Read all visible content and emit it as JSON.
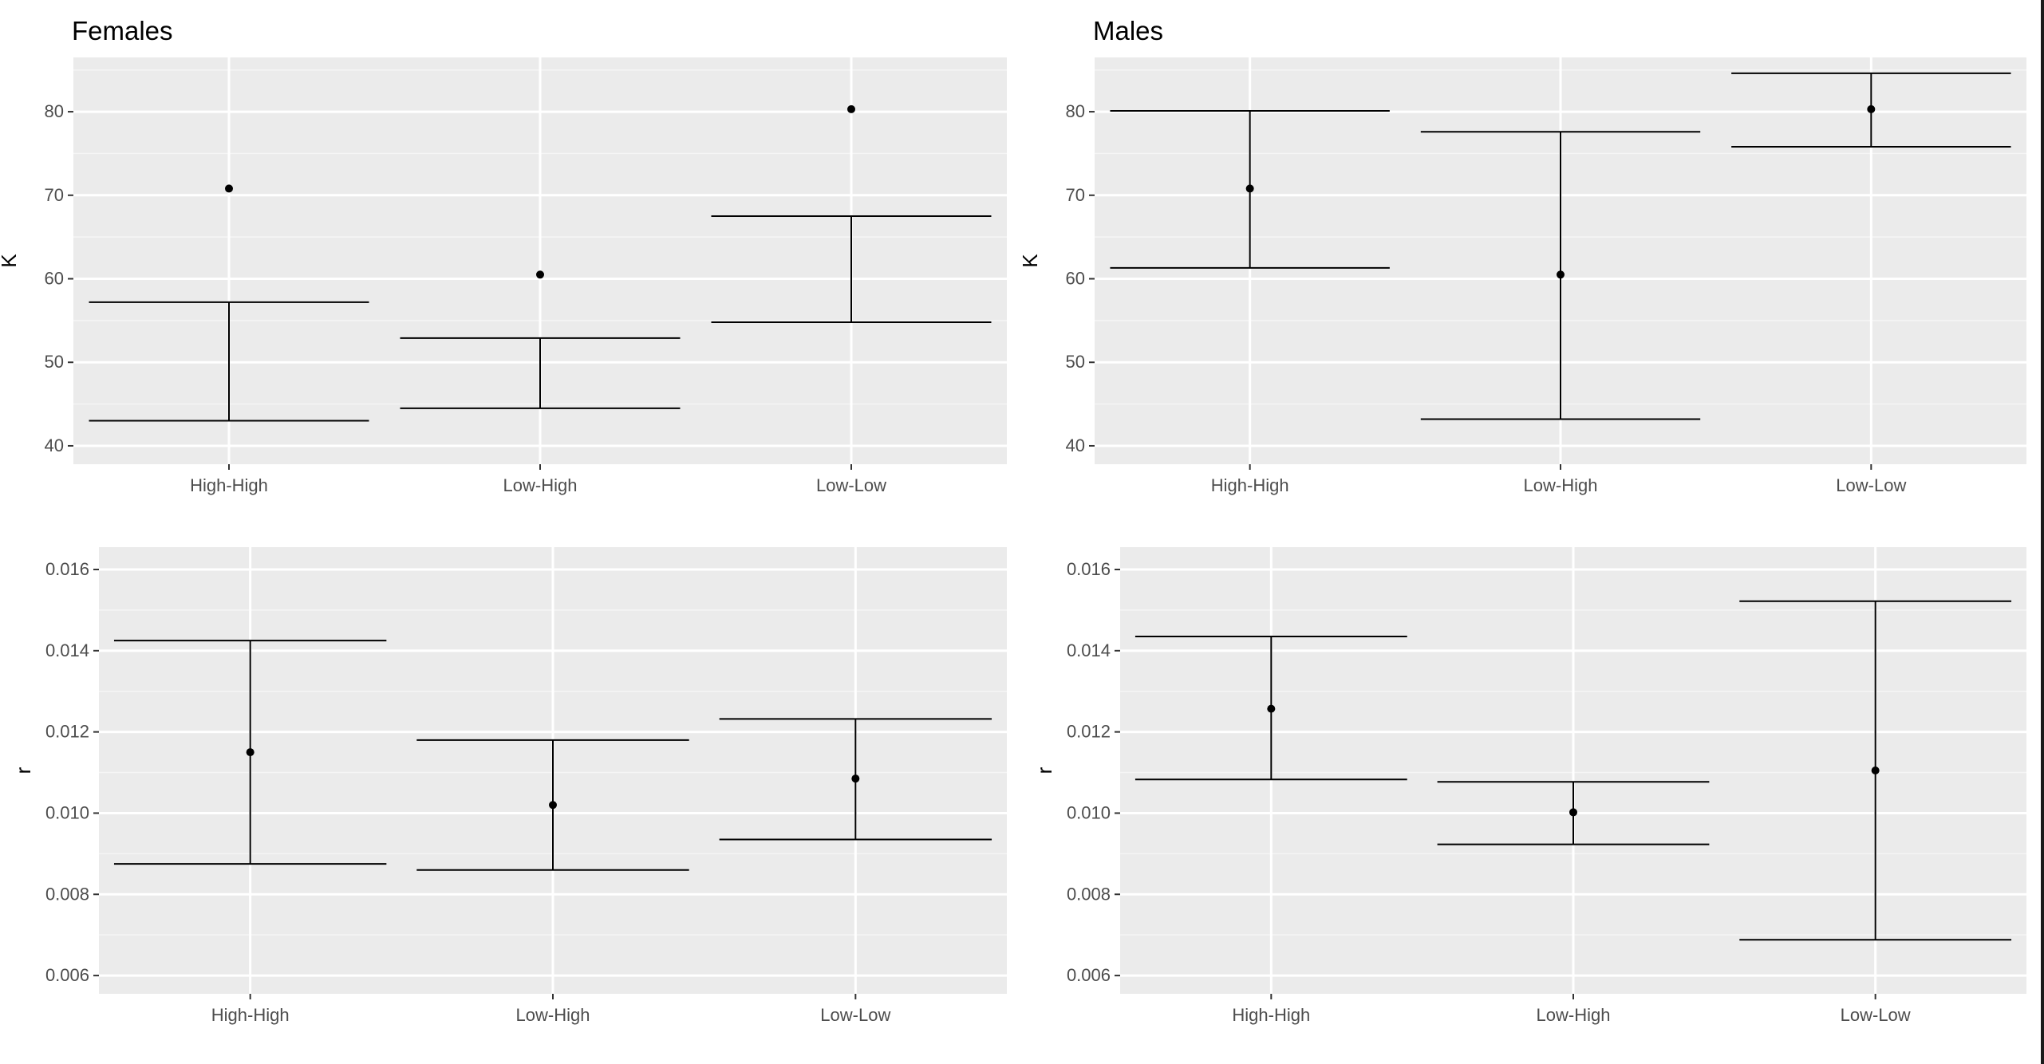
{
  "chart_data": [
    {
      "type": "errorbar",
      "title": "Females",
      "ylabel": "K",
      "xlabel": "",
      "categories": [
        "High-High",
        "Low-High",
        "Low-Low"
      ],
      "points": [
        70.8,
        60.5,
        80.3
      ],
      "ci_low": [
        43.0,
        44.5,
        54.8
      ],
      "ci_high": [
        57.2,
        52.9,
        67.5
      ],
      "ylim": [
        37.8,
        86.5
      ],
      "yticks": [
        40,
        50,
        60,
        70,
        80
      ],
      "ytick_labels": [
        "40",
        "50",
        "60",
        "70",
        "80"
      ],
      "grid": true
    },
    {
      "type": "errorbar",
      "title": "Males",
      "ylabel": "K",
      "xlabel": "",
      "categories": [
        "High-High",
        "Low-High",
        "Low-Low"
      ],
      "points": [
        70.8,
        60.5,
        80.3
      ],
      "ci_low": [
        61.3,
        43.2,
        75.8
      ],
      "ci_high": [
        80.1,
        77.6,
        84.6
      ],
      "ylim": [
        37.8,
        86.5
      ],
      "yticks": [
        40,
        50,
        60,
        70,
        80
      ],
      "ytick_labels": [
        "40",
        "50",
        "60",
        "70",
        "80"
      ],
      "grid": true
    },
    {
      "type": "errorbar",
      "title": "",
      "ylabel": "r",
      "xlabel": "",
      "categories": [
        "High-High",
        "Low-High",
        "Low-Low"
      ],
      "points": [
        0.0115,
        0.0102,
        0.01085
      ],
      "ci_low": [
        0.00875,
        0.0086,
        0.00935
      ],
      "ci_high": [
        0.01425,
        0.0118,
        0.01232
      ],
      "ylim": [
        0.00555,
        0.01655
      ],
      "yticks": [
        0.006,
        0.008,
        0.01,
        0.012,
        0.014,
        0.016
      ],
      "ytick_labels": [
        "0.006",
        "0.008",
        "0.010",
        "0.012",
        "0.014",
        "0.016"
      ],
      "grid": true
    },
    {
      "type": "errorbar",
      "title": "",
      "ylabel": "r",
      "xlabel": "",
      "categories": [
        "High-High",
        "Low-High",
        "Low-Low"
      ],
      "points": [
        0.01257,
        0.01002,
        0.01105
      ],
      "ci_low": [
        0.01083,
        0.00923,
        0.00688
      ],
      "ci_high": [
        0.01435,
        0.01077,
        0.01522
      ],
      "ylim": [
        0.00555,
        0.01655
      ],
      "yticks": [
        0.006,
        0.008,
        0.01,
        0.012,
        0.014,
        0.016
      ],
      "ytick_labels": [
        "0.006",
        "0.008",
        "0.010",
        "0.012",
        "0.014",
        "0.016"
      ],
      "grid": true
    }
  ],
  "colors": {
    "panel_background": "#ebebeb",
    "grid_major": "#ffffff",
    "grid_minor": "#f5f5f5",
    "mark": "#000000",
    "tick_label": "#4d4d4d"
  }
}
